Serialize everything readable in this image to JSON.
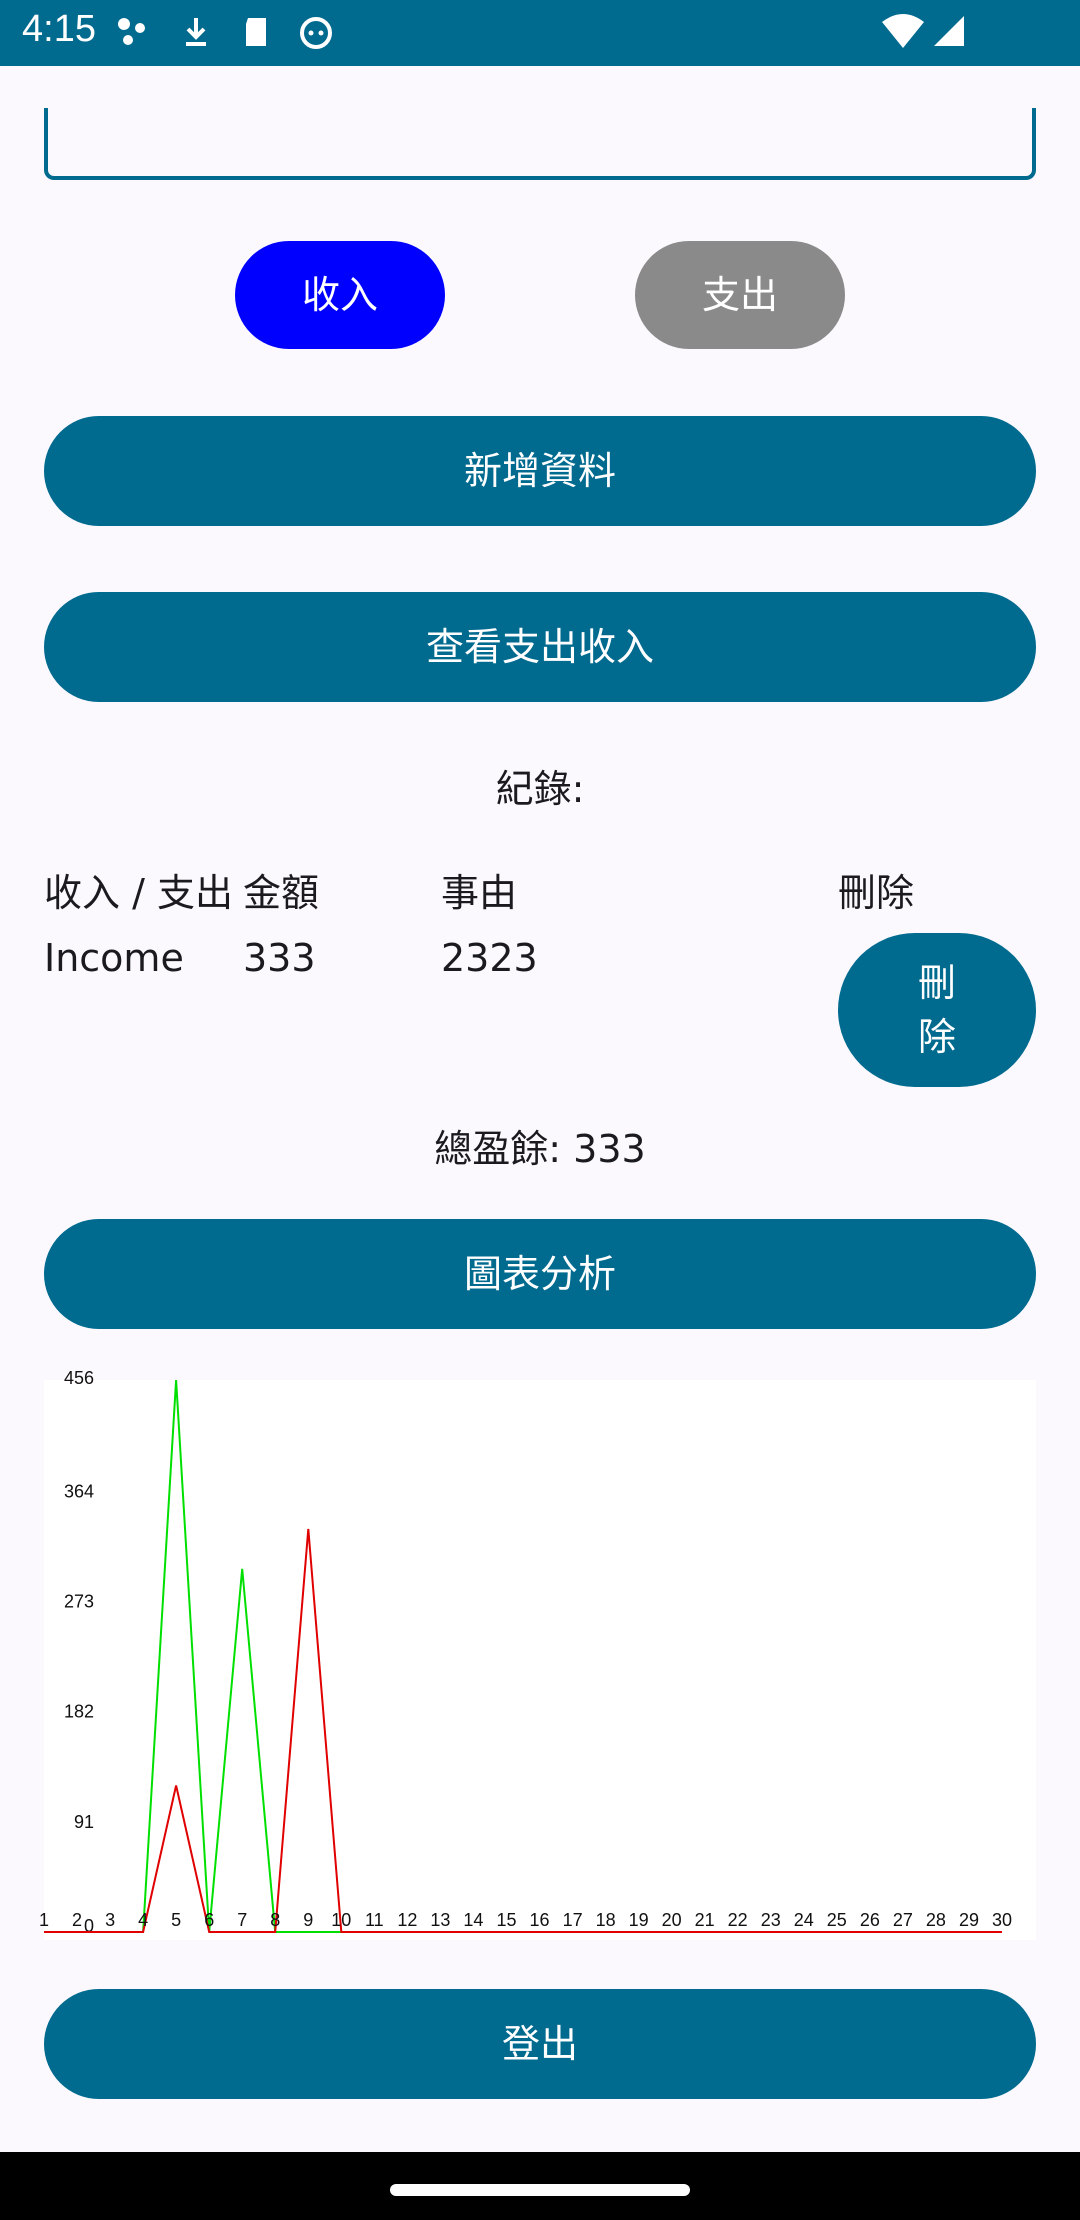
{
  "status_bar": {
    "time": "4:15",
    "left_icons": [
      "dots-icon",
      "download-icon",
      "sd-card-icon",
      "cat-face-icon"
    ],
    "right_icons": [
      "wifi-icon",
      "signal-icon"
    ]
  },
  "form": {
    "income_label": "收入",
    "expense_label": "支出",
    "add_label": "新增資料",
    "view_label": "查看支出收入"
  },
  "records": {
    "title": "紀錄:",
    "headers": {
      "type": "收入 / 支出",
      "amount": "金額",
      "reason": "事由",
      "delete": "刪除"
    },
    "rows": [
      {
        "type": "Income",
        "amount": "333",
        "reason": "2323",
        "delete_label": "刪除"
      }
    ],
    "total": "總盈餘: 333"
  },
  "chart_button_label": "圖表分析",
  "chart_data": {
    "type": "line",
    "x": [
      1,
      2,
      3,
      4,
      5,
      6,
      7,
      8,
      9,
      10,
      11,
      12,
      13,
      14,
      15,
      16,
      17,
      18,
      19,
      20,
      21,
      22,
      23,
      24,
      25,
      26,
      27,
      28,
      29,
      30
    ],
    "y_ticks": [
      "456",
      "364",
      "273",
      "182",
      "91",
      "0"
    ],
    "ylim": [
      0,
      456
    ],
    "series": [
      {
        "color": "#00E000",
        "values": [
          0,
          0,
          0,
          0,
          456,
          0,
          300,
          0,
          0,
          0,
          0,
          0,
          0,
          0,
          0,
          0,
          0,
          0,
          0,
          0,
          0,
          0,
          0,
          0,
          0,
          0,
          0,
          0,
          0,
          0
        ]
      },
      {
        "color": "#E00000",
        "values": [
          0,
          0,
          0,
          0,
          121,
          0,
          0,
          0,
          333,
          0,
          0,
          0,
          0,
          0,
          0,
          0,
          0,
          0,
          0,
          0,
          0,
          0,
          0,
          0,
          0,
          0,
          0,
          0,
          0,
          0
        ]
      }
    ],
    "grid": false
  },
  "logout_label": "登出",
  "colors": {
    "primary": "#006A8F",
    "income_active": "#0000FF",
    "expense_inactive": "#8A8A8A"
  }
}
